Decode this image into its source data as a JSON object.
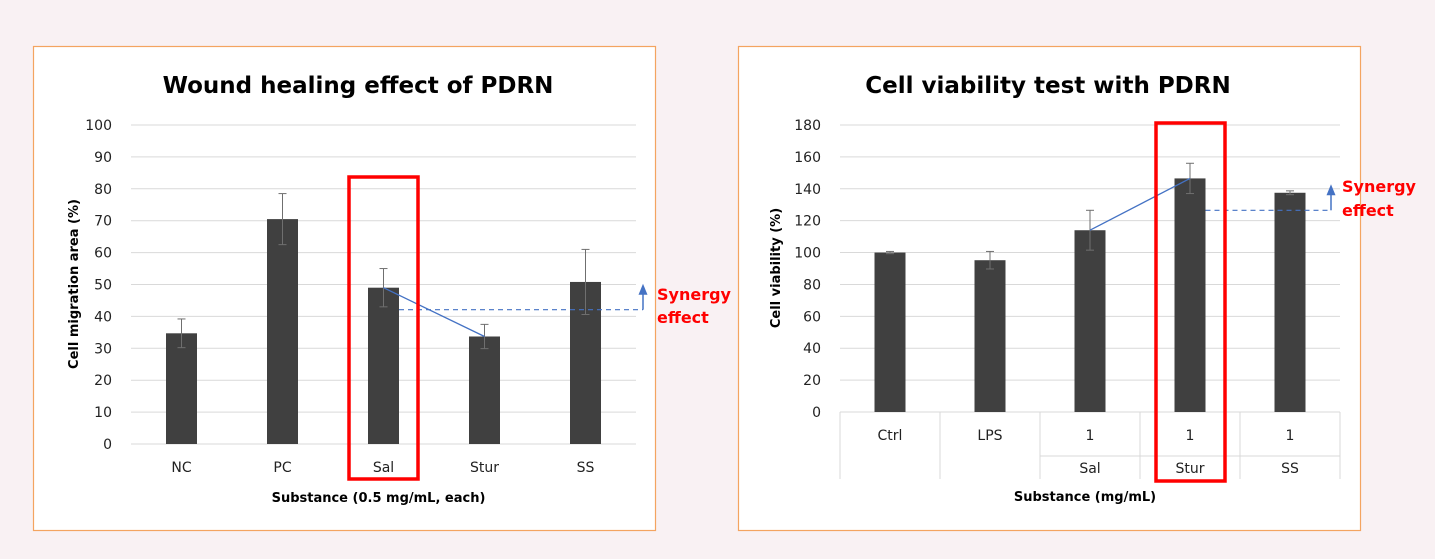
{
  "colors": {
    "background": "#f9f1f3",
    "panel": "#ffffff",
    "panel_border": "#f4a460",
    "bar": "#404040",
    "gridline": "#d9d9d9",
    "highlight": "#ff0000",
    "connector": "#4472c4",
    "synergy_text": "#ff0000"
  },
  "chart_data": [
    {
      "type": "bar",
      "title": "Wound healing effect of PDRN",
      "xlabel": "Substance (0.5 mg/mL, each)",
      "ylabel": "Cell migration area (%)",
      "ylim": [
        0,
        100
      ],
      "yticks": [
        0,
        10,
        20,
        30,
        40,
        50,
        60,
        70,
        80,
        90,
        100
      ],
      "categories": [
        "NC",
        "PC",
        "Sal",
        "Stur",
        "SS"
      ],
      "values": [
        34.7,
        70.5,
        49.0,
        33.7,
        50.8
      ],
      "errors": [
        4.5,
        8.0,
        6.0,
        3.8,
        10.2
      ],
      "grid": true,
      "highlighted_category": "Sal",
      "connector": {
        "from": "Sal",
        "to": "Stur"
      },
      "synergy_reference": "Sal",
      "annotation": [
        "Synergy",
        "effect"
      ]
    },
    {
      "type": "bar",
      "title": "Cell viability test with PDRN",
      "xlabel": "Substance (mg/mL)",
      "ylabel": "Cell viability (%)",
      "ylim": [
        0,
        180
      ],
      "yticks": [
        0,
        20,
        40,
        60,
        80,
        100,
        120,
        140,
        160,
        180
      ],
      "categories": [
        "Ctrl",
        "LPS",
        "1",
        "1",
        "1"
      ],
      "category_groups": [
        "",
        "",
        "Sal",
        "Stur",
        "SS"
      ],
      "values": [
        100.0,
        95.2,
        114.0,
        146.5,
        137.5
      ],
      "errors": [
        0.7,
        5.5,
        12.5,
        9.5,
        1.2
      ],
      "grid": true,
      "highlighted_category": "Stur",
      "connector": {
        "from": "Sal",
        "to": "Stur"
      },
      "synergy_reference": "Stur",
      "annotation": [
        "Synergy",
        "effect"
      ]
    }
  ]
}
